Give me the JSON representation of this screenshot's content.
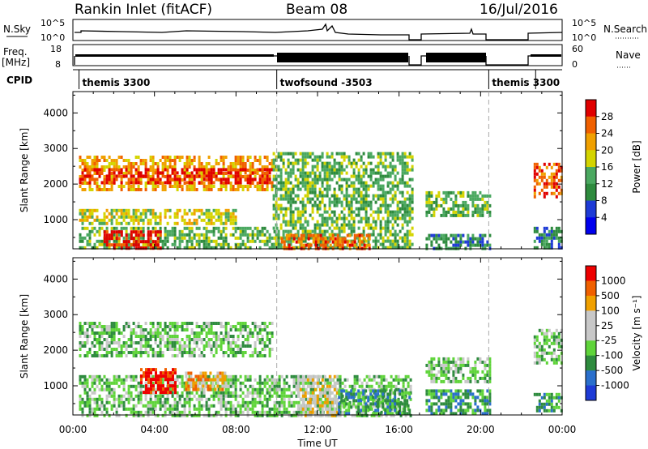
{
  "header": {
    "station": "Rankin Inlet (fitACF)",
    "beam": "Beam 08",
    "date": "16/Jul/2016"
  },
  "strip_labels": {
    "nsky": "N.Sky",
    "nsky_top": "10^5",
    "nsky_bottom": "10^0",
    "nsearch": "N.Search",
    "nsearch_top": "10^5",
    "nsearch_bottom": "10^0",
    "freq": "Freq.",
    "freq_unit": "[MHz]",
    "freq_top": "18",
    "freq_bottom": "8",
    "nave": "Nave",
    "nave_top": "60",
    "nave_bottom": "0",
    "cpid": "CPID"
  },
  "cpid_segments": [
    {
      "label": "themis 3300",
      "start": 0.3,
      "end": 10.0
    },
    {
      "label": "twofsound -3503",
      "start": 10.0,
      "end": 20.4
    },
    {
      "label": "themis 3300",
      "start": 20.4,
      "end": 22.7
    }
  ],
  "colors": {
    "power": [
      "#0000ee",
      "#1e3bd6",
      "#2e8b3e",
      "#4aa860",
      "#d4d400",
      "#f0a000",
      "#f06000",
      "#e00000"
    ],
    "velocity": [
      "#ee0000",
      "#f06000",
      "#f0a000",
      "#c8c8c8",
      "#c8c8c8",
      "#5fd43a",
      "#2e8b3e",
      "#2a6fcc",
      "#1e3bd6"
    ]
  },
  "chart_data": [
    {
      "type": "heatmap",
      "panel": "power",
      "xlabel": "",
      "ylabel": "Slant Range [km]",
      "xlim": [
        0,
        24
      ],
      "ylim": [
        180,
        4600
      ],
      "xticks": [
        "00:00",
        "04:00",
        "08:00",
        "12:00",
        "16:00",
        "20:00",
        "00:00"
      ],
      "yticks": [
        1000,
        2000,
        3000,
        4000
      ],
      "colorbar": {
        "label": "Power [dB]",
        "ticks": [
          4,
          8,
          12,
          16,
          20,
          24,
          28
        ],
        "range": [
          0,
          30
        ]
      },
      "regions": [
        {
          "t0": 0.3,
          "t1": 9.8,
          "r0": 1800,
          "r1": 2800,
          "level": 5
        },
        {
          "t0": 0.3,
          "t1": 9.8,
          "r0": 2050,
          "r1": 2450,
          "level": 7
        },
        {
          "t0": 0.3,
          "t1": 8.0,
          "r0": 900,
          "r1": 1300,
          "level": 4
        },
        {
          "t0": 0.3,
          "t1": 10.0,
          "r0": 180,
          "r1": 800,
          "level": 3
        },
        {
          "t0": 1.5,
          "t1": 4.3,
          "r0": 180,
          "r1": 700,
          "level": 7
        },
        {
          "t0": 9.8,
          "t1": 16.6,
          "r0": 180,
          "r1": 2900,
          "level": 3
        },
        {
          "t0": 10.2,
          "t1": 14.5,
          "r0": 180,
          "r1": 600,
          "level": 6
        },
        {
          "t0": 17.3,
          "t1": 20.4,
          "r0": 1100,
          "r1": 1800,
          "level": 3
        },
        {
          "t0": 17.3,
          "t1": 20.4,
          "r0": 180,
          "r1": 600,
          "level": 2
        },
        {
          "t0": 22.6,
          "t1": 24.0,
          "r0": 1600,
          "r1": 2600,
          "level": 6
        },
        {
          "t0": 22.6,
          "t1": 24.0,
          "r0": 180,
          "r1": 800,
          "level": 2
        }
      ]
    },
    {
      "type": "heatmap",
      "panel": "velocity",
      "xlabel": "Time UT",
      "ylabel": "Slant Range [km]",
      "xlim": [
        0,
        24
      ],
      "ylim": [
        180,
        4600
      ],
      "xticks": [
        "00:00",
        "04:00",
        "08:00",
        "12:00",
        "16:00",
        "20:00",
        "00:00"
      ],
      "yticks": [
        1000,
        2000,
        3000,
        4000
      ],
      "colorbar": {
        "label": "Velocity [m s⁻¹]",
        "ticks": [
          1000,
          500,
          100,
          25,
          -25,
          -100,
          -500,
          -1000
        ]
      },
      "regions": [
        {
          "t0": 0.3,
          "t1": 9.8,
          "r0": 1800,
          "r1": 2800,
          "level": 3
        },
        {
          "t0": 0.3,
          "t1": 16.6,
          "r0": 180,
          "r1": 1300,
          "level": 3
        },
        {
          "t0": 3.3,
          "t1": 5.0,
          "r0": 800,
          "r1": 1500,
          "level": 8
        },
        {
          "t0": 5.5,
          "t1": 7.5,
          "r0": 900,
          "r1": 1400,
          "level": 6
        },
        {
          "t0": 11.0,
          "t1": 13.0,
          "r0": 200,
          "r1": 1300,
          "level": 5
        },
        {
          "t0": 13.0,
          "t1": 16.5,
          "r0": 200,
          "r1": 900,
          "level": 2
        },
        {
          "t0": 17.3,
          "t1": 20.4,
          "r0": 1100,
          "r1": 1800,
          "level": 3
        },
        {
          "t0": 17.3,
          "t1": 20.4,
          "r0": 200,
          "r1": 900,
          "level": 2
        },
        {
          "t0": 22.6,
          "t1": 24.0,
          "r0": 1600,
          "r1": 2600,
          "level": 3
        },
        {
          "t0": 22.6,
          "t1": 24.0,
          "r0": 300,
          "r1": 800,
          "level": 2
        }
      ]
    }
  ]
}
